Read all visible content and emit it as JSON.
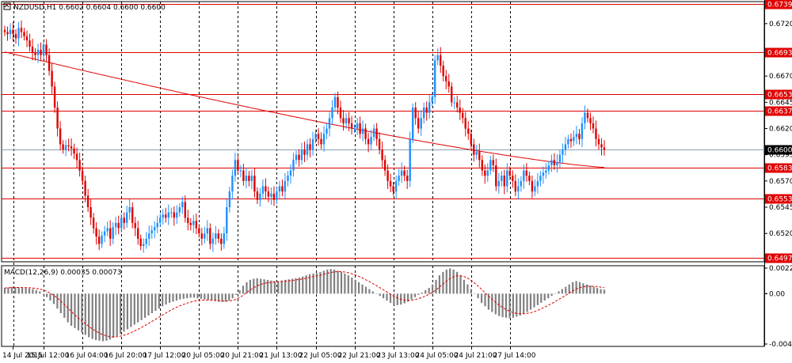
{
  "chart_data": [
    {
      "type": "candlestick",
      "title": "NZDUSD,H1  0.6602 0.6604 0.6600 0.6600",
      "ylim": [
        0.6493,
        0.6741
      ],
      "yticks": [
        "0.6720",
        "0.6670",
        "0.6645",
        "0.6620",
        "0.6595",
        "0.6570",
        "0.6545",
        "0.6520"
      ],
      "current_price": "0.6600",
      "bull_color": "#1e90ff",
      "bear_color": "#e00000",
      "hlines": [
        {
          "label": "0.6739",
          "value": 0.6739,
          "color": "#e00000"
        },
        {
          "label": "0.6693",
          "value": 0.6693,
          "color": "#e00000"
        },
        {
          "label": "0.6653",
          "value": 0.6653,
          "color": "#e00000"
        },
        {
          "label": "0.6637",
          "value": 0.6637,
          "color": "#e00000"
        },
        {
          "label": "0.6583",
          "value": 0.6583,
          "color": "#e00000"
        },
        {
          "label": "0.6553",
          "value": 0.6553,
          "color": "#e00000"
        },
        {
          "label": "0.6497",
          "value": 0.6497,
          "color": "#e00000"
        }
      ],
      "close_series": [
        0.6712,
        0.671,
        0.6714,
        0.671,
        0.6706,
        0.6716,
        0.6712,
        0.6708,
        0.6704,
        0.6698,
        0.6692,
        0.669,
        0.6695,
        0.669,
        0.67,
        0.669,
        0.6675,
        0.666,
        0.664,
        0.662,
        0.6605,
        0.66,
        0.6604,
        0.6603,
        0.6601,
        0.6596,
        0.659,
        0.658,
        0.657,
        0.6556,
        0.6545,
        0.6535,
        0.6525,
        0.6517,
        0.651,
        0.6518,
        0.6522,
        0.6525,
        0.6515,
        0.6526,
        0.653,
        0.6525,
        0.6535,
        0.653,
        0.654,
        0.6545,
        0.653,
        0.6525,
        0.6515,
        0.6508,
        0.651,
        0.6515,
        0.652,
        0.6523,
        0.6526,
        0.653,
        0.6535,
        0.6538,
        0.6535,
        0.654,
        0.654,
        0.6535,
        0.654,
        0.6545,
        0.655,
        0.6535,
        0.653,
        0.6528,
        0.6532,
        0.6525,
        0.652,
        0.6515,
        0.652,
        0.6525,
        0.651,
        0.6515,
        0.652,
        0.6515,
        0.651,
        0.652,
        0.6545,
        0.656,
        0.6575,
        0.659,
        0.658,
        0.658,
        0.657,
        0.6575,
        0.657,
        0.6575,
        0.656,
        0.6552,
        0.6558,
        0.6565,
        0.656,
        0.6555,
        0.6558,
        0.6552,
        0.656,
        0.6565,
        0.656,
        0.657,
        0.6575,
        0.658,
        0.659,
        0.6595,
        0.659,
        0.66,
        0.6595,
        0.6605,
        0.66,
        0.661,
        0.6615,
        0.661,
        0.6605,
        0.6615,
        0.662,
        0.663,
        0.664,
        0.665,
        0.664,
        0.663,
        0.6625,
        0.663,
        0.6625,
        0.662,
        0.662,
        0.6625,
        0.6615,
        0.662,
        0.661,
        0.6605,
        0.6612,
        0.662,
        0.661,
        0.66,
        0.659,
        0.658,
        0.657,
        0.6565,
        0.656,
        0.657,
        0.6575,
        0.658,
        0.6575,
        0.657,
        0.661,
        0.664,
        0.663,
        0.662,
        0.663,
        0.664,
        0.6635,
        0.6645,
        0.665,
        0.6685,
        0.669,
        0.668,
        0.667,
        0.6665,
        0.666,
        0.6645,
        0.6645,
        0.664,
        0.6635,
        0.663,
        0.662,
        0.6615,
        0.6605,
        0.6595,
        0.6598,
        0.659,
        0.658,
        0.6575,
        0.658,
        0.659,
        0.6585,
        0.6565,
        0.657,
        0.6575,
        0.6565,
        0.658,
        0.6575,
        0.657,
        0.656,
        0.6565,
        0.657,
        0.658,
        0.6575,
        0.657,
        0.656,
        0.6565,
        0.657,
        0.6575,
        0.6578,
        0.658,
        0.6585,
        0.659,
        0.6585,
        0.6588,
        0.6595,
        0.66,
        0.6605,
        0.661,
        0.6608,
        0.6612,
        0.6615,
        0.661,
        0.6625,
        0.6635,
        0.663,
        0.6625,
        0.662,
        0.661,
        0.6605,
        0.6602,
        0.66
      ],
      "xtick_labels": [
        "14 Jul 2015",
        "15 Jul 12:00",
        "16 Jul 04:00",
        "16 Jul 20:00",
        "17 Jul 12:00",
        "20 Jul 05:00",
        "20 Jul 21:00",
        "21 Jul 13:00",
        "22 Jul 05:00",
        "22 Jul 21:00",
        "23 Jul 13:00",
        "24 Jul 05:00",
        "24 Jul 21:00",
        "27 Jul 14:00"
      ],
      "xtick_bar_index": [
        0,
        14,
        28,
        42,
        56,
        70,
        84,
        98,
        112,
        126,
        140,
        154,
        168,
        182
      ],
      "moving_average": {
        "start": 0.6693,
        "end": 0.6583,
        "color": "#e00000"
      }
    },
    {
      "type": "bar",
      "title": "MACD(12,26,9) 0.00035 0.00073",
      "ylim": [
        -0.00439,
        0.00223
      ],
      "yticks": [
        "0.00223",
        "0.00",
        "-0.00439"
      ],
      "bar_color": "#808080",
      "signal_color": "#e00000",
      "values": [
        0.0005,
        0.00055,
        0.0006,
        0.00058,
        0.00055,
        0.00052,
        0.0005,
        0.00045,
        0.0004,
        0.0003,
        0.0002,
        0.0,
        -0.0003,
        -0.0006,
        -0.0009,
        -0.0013,
        -0.0017,
        -0.0021,
        -0.0025,
        -0.0028,
        -0.003,
        -0.0032,
        -0.0034,
        -0.0036,
        -0.0038,
        -0.00395,
        -0.00405,
        -0.0041,
        -0.00415,
        -0.0041,
        -0.004,
        -0.00385,
        -0.0037,
        -0.0035,
        -0.0033,
        -0.0031,
        -0.0029,
        -0.0027,
        -0.0025,
        -0.0023,
        -0.0021,
        -0.0019,
        -0.0017,
        -0.0015,
        -0.0013,
        -0.0011,
        -0.00095,
        -0.0008,
        -0.0007,
        -0.0006,
        -0.0005,
        -0.00045,
        -0.0004,
        -0.00035,
        -0.00035,
        -0.0004,
        -0.00045,
        -0.0005,
        -0.00055,
        -0.0006,
        -0.00065,
        -0.0007,
        -0.00072,
        -0.0007,
        -0.0006,
        -0.0004,
        -0.0001,
        0.0003,
        0.0007,
        0.001,
        0.0012,
        0.0013,
        0.00135,
        0.0013,
        0.00125,
        0.0012,
        0.00115,
        0.0011,
        0.0011,
        0.00115,
        0.0012,
        0.00125,
        0.0013,
        0.00135,
        0.0014,
        0.0015,
        0.0016,
        0.0017,
        0.00175,
        0.0018,
        0.0019,
        0.002,
        0.0021,
        0.00215,
        0.0021,
        0.002,
        0.0019,
        0.00175,
        0.0016,
        0.0014,
        0.0012,
        0.001,
        0.0008,
        0.0006,
        0.0004,
        0.0002,
        0.0,
        -0.0002,
        -0.0004,
        -0.0006,
        -0.0008,
        -0.00095,
        -0.001,
        -0.00095,
        -0.00085,
        -0.0007,
        -0.0005,
        -0.0003,
        -0.0001,
        0.0001,
        0.0003,
        0.0005,
        0.0008,
        0.0012,
        0.0016,
        0.0019,
        0.0021,
        0.0022,
        0.0021,
        0.0019,
        0.0016,
        0.0012,
        0.0008,
        0.0004,
        0.0,
        -0.0004,
        -0.0008,
        -0.0011,
        -0.0014,
        -0.0016,
        -0.0018,
        -0.00195,
        -0.00205,
        -0.0021,
        -0.00215,
        -0.0021,
        -0.002,
        -0.0019,
        -0.00175,
        -0.0016,
        -0.0014,
        -0.0012,
        -0.001,
        -0.0008,
        -0.0006,
        -0.0004,
        -0.0002,
        0.0,
        0.0002,
        0.0004,
        0.0006,
        0.0008,
        0.001,
        0.0011,
        0.001,
        0.0009,
        0.0008,
        0.0007,
        0.0006,
        0.0005,
        0.0004,
        0.00035
      ]
    }
  ]
}
